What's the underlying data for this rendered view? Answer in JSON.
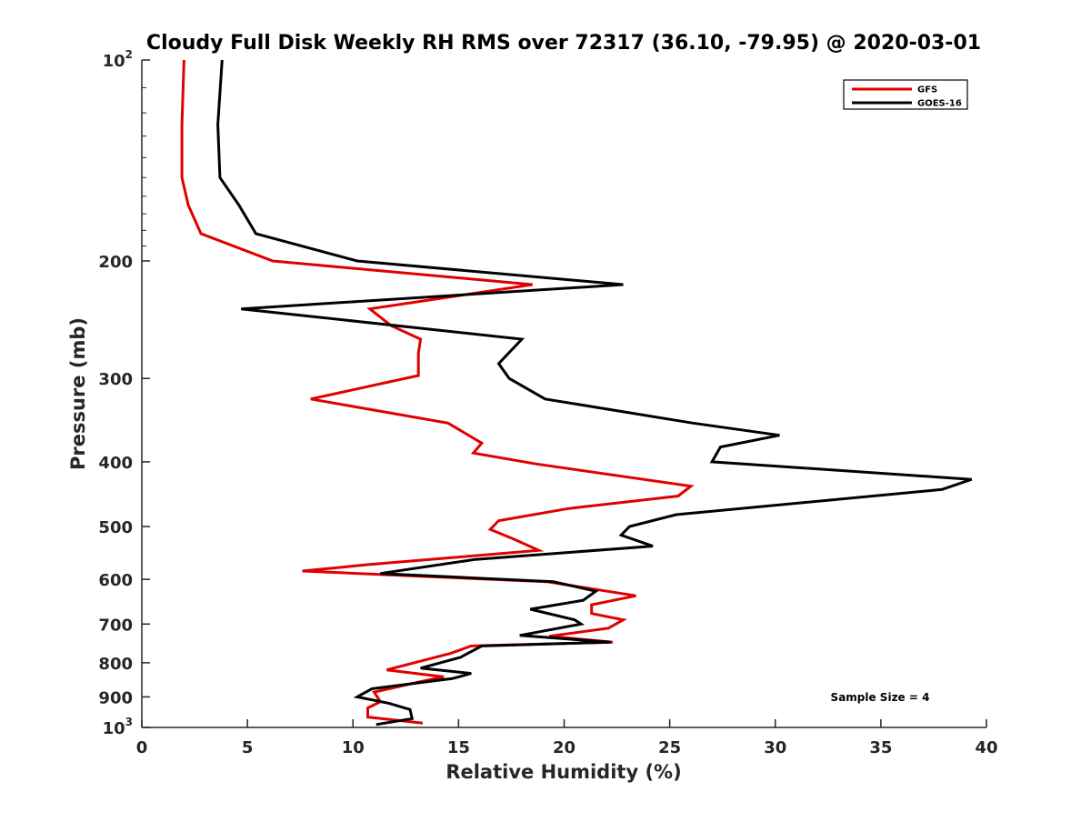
{
  "chart_data": {
    "type": "line",
    "title": "Cloudy Full Disk Weekly RH RMS over 72317 (36.10, -79.95) @ 2020-03-01",
    "xlabel": "Relative Humidity (%)",
    "ylabel": "Pressure (mb)",
    "xlim": [
      0,
      40
    ],
    "ylim": [
      100,
      1000
    ],
    "y_scale": "log",
    "y_reversed": true,
    "x_ticks": [
      0,
      5,
      10,
      15,
      20,
      25,
      30,
      35,
      40
    ],
    "x_tick_labels": [
      "0",
      "5",
      "10",
      "15",
      "20",
      "25",
      "30",
      "35",
      "40"
    ],
    "y_ticks": [
      {
        "value": 100,
        "label": "10",
        "sup": "2"
      },
      {
        "value": 200,
        "label": "200",
        "sup": ""
      },
      {
        "value": 300,
        "label": "300",
        "sup": ""
      },
      {
        "value": 400,
        "label": "400",
        "sup": ""
      },
      {
        "value": 500,
        "label": "500",
        "sup": ""
      },
      {
        "value": 600,
        "label": "600",
        "sup": ""
      },
      {
        "value": 700,
        "label": "700",
        "sup": ""
      },
      {
        "value": 800,
        "label": "800",
        "sup": ""
      },
      {
        "value": 900,
        "label": "900",
        "sup": ""
      },
      {
        "value": 1000,
        "label": "10",
        "sup": "3"
      }
    ],
    "grid": false,
    "legend_position": "top-right",
    "annotation": "Sample Size = 4",
    "series": [
      {
        "name": "GFS",
        "color": "#e00000",
        "points": [
          [
            2.0,
            100
          ],
          [
            1.9,
            125
          ],
          [
            1.9,
            150
          ],
          [
            2.2,
            165
          ],
          [
            2.8,
            182
          ],
          [
            6.2,
            200
          ],
          [
            18.5,
            217
          ],
          [
            10.8,
            236
          ],
          [
            11.8,
            250
          ],
          [
            13.2,
            262
          ],
          [
            13.1,
            275
          ],
          [
            13.1,
            297
          ],
          [
            8.0,
            322
          ],
          [
            14.5,
            350
          ],
          [
            16.1,
            375
          ],
          [
            15.7,
            388
          ],
          [
            18.7,
            403
          ],
          [
            26.0,
            435
          ],
          [
            25.4,
            450
          ],
          [
            20.2,
            470
          ],
          [
            16.9,
            490
          ],
          [
            16.5,
            505
          ],
          [
            17.6,
            522
          ],
          [
            18.8,
            543
          ],
          [
            10.8,
            570
          ],
          [
            7.6,
            583
          ],
          [
            19.2,
            605
          ],
          [
            23.4,
            635
          ],
          [
            21.3,
            655
          ],
          [
            21.3,
            675
          ],
          [
            22.8,
            690
          ],
          [
            22.1,
            710
          ],
          [
            19.3,
            730
          ],
          [
            22.3,
            745
          ],
          [
            15.6,
            755
          ],
          [
            14.6,
            775
          ],
          [
            11.6,
            820
          ],
          [
            14.3,
            840
          ],
          [
            13.1,
            855
          ],
          [
            11.0,
            885
          ],
          [
            11.3,
            915
          ],
          [
            10.7,
            935
          ],
          [
            10.7,
            965
          ],
          [
            13.3,
            985
          ]
        ]
      },
      {
        "name": "GOES-16",
        "color": "#000000",
        "points": [
          [
            3.8,
            100
          ],
          [
            3.6,
            125
          ],
          [
            3.7,
            150
          ],
          [
            4.6,
            165
          ],
          [
            5.4,
            182
          ],
          [
            10.2,
            200
          ],
          [
            22.8,
            217
          ],
          [
            4.7,
            236
          ],
          [
            18.0,
            262
          ],
          [
            16.9,
            285
          ],
          [
            17.4,
            300
          ],
          [
            19.1,
            322
          ],
          [
            26.1,
            350
          ],
          [
            30.2,
            365
          ],
          [
            27.4,
            380
          ],
          [
            27.0,
            400
          ],
          [
            39.3,
            425
          ],
          [
            37.9,
            440
          ],
          [
            25.3,
            480
          ],
          [
            23.1,
            500
          ],
          [
            22.7,
            515
          ],
          [
            24.2,
            535
          ],
          [
            15.8,
            560
          ],
          [
            11.3,
            588
          ],
          [
            19.5,
            605
          ],
          [
            21.5,
            625
          ],
          [
            20.9,
            645
          ],
          [
            18.4,
            665
          ],
          [
            20.5,
            690
          ],
          [
            20.8,
            700
          ],
          [
            17.9,
            728
          ],
          [
            22.2,
            745
          ],
          [
            16.1,
            755
          ],
          [
            15.1,
            785
          ],
          [
            13.2,
            815
          ],
          [
            15.6,
            830
          ],
          [
            14.7,
            845
          ],
          [
            10.9,
            875
          ],
          [
            10.2,
            900
          ],
          [
            11.7,
            920
          ],
          [
            12.7,
            940
          ],
          [
            12.8,
            970
          ],
          [
            11.1,
            990
          ]
        ]
      }
    ]
  }
}
